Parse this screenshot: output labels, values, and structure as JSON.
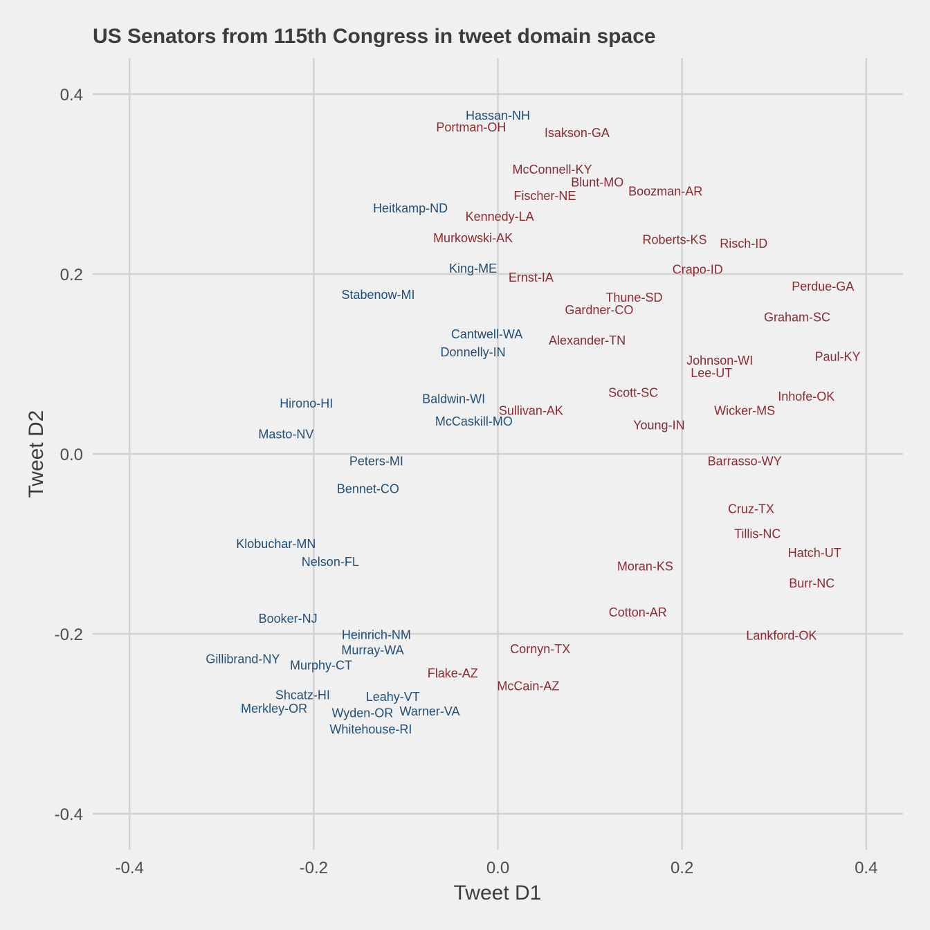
{
  "chart_data": {
    "type": "scatter",
    "title": "US Senators from 115th Congress in tweet domain space",
    "xlabel": "Tweet D1",
    "ylabel": "Tweet D2",
    "xlim": [
      -0.44,
      0.44
    ],
    "ylim": [
      -0.44,
      0.44
    ],
    "xticks": [
      -0.4,
      -0.2,
      0.0,
      0.2,
      0.4
    ],
    "yticks": [
      -0.4,
      -0.2,
      0.0,
      0.2,
      0.4
    ],
    "xtick_labels": [
      "-0.4",
      "-0.2",
      "0.0",
      "0.2",
      "0.4"
    ],
    "ytick_labels": [
      "-0.4",
      "-0.2",
      "0.0",
      "0.2",
      "0.4"
    ],
    "grid": true,
    "colors": {
      "democrat": "#1f4e79",
      "republican": "#8b2a2f"
    },
    "points": [
      {
        "label": "Hassan-NH",
        "x": 0.0,
        "y": 0.376,
        "group": "democrat"
      },
      {
        "label": "Portman-OH",
        "x": -0.029,
        "y": 0.363,
        "group": "republican"
      },
      {
        "label": "Isakson-GA",
        "x": 0.086,
        "y": 0.357,
        "group": "republican"
      },
      {
        "label": "McConnell-KY",
        "x": 0.059,
        "y": 0.316,
        "group": "republican"
      },
      {
        "label": "Blunt-MO",
        "x": 0.108,
        "y": 0.302,
        "group": "republican"
      },
      {
        "label": "Boozman-AR",
        "x": 0.182,
        "y": 0.292,
        "group": "republican"
      },
      {
        "label": "Fischer-NE",
        "x": 0.051,
        "y": 0.287,
        "group": "republican"
      },
      {
        "label": "Heitkamp-ND",
        "x": -0.095,
        "y": 0.273,
        "group": "democrat"
      },
      {
        "label": "Kennedy-LA",
        "x": 0.002,
        "y": 0.264,
        "group": "republican"
      },
      {
        "label": "Murkowski-AK",
        "x": -0.027,
        "y": 0.24,
        "group": "republican"
      },
      {
        "label": "Roberts-KS",
        "x": 0.192,
        "y": 0.238,
        "group": "republican"
      },
      {
        "label": "Risch-ID",
        "x": 0.267,
        "y": 0.234,
        "group": "republican"
      },
      {
        "label": "King-ME",
        "x": -0.027,
        "y": 0.206,
        "group": "democrat"
      },
      {
        "label": "Crapo-ID",
        "x": 0.217,
        "y": 0.205,
        "group": "republican"
      },
      {
        "label": "Ernst-IA",
        "x": 0.036,
        "y": 0.196,
        "group": "republican"
      },
      {
        "label": "Perdue-GA",
        "x": 0.353,
        "y": 0.186,
        "group": "republican"
      },
      {
        "label": "Stabenow-MI",
        "x": -0.13,
        "y": 0.177,
        "group": "democrat"
      },
      {
        "label": "Thune-SD",
        "x": 0.148,
        "y": 0.174,
        "group": "republican"
      },
      {
        "label": "Gardner-CO",
        "x": 0.11,
        "y": 0.16,
        "group": "republican"
      },
      {
        "label": "Graham-SC",
        "x": 0.325,
        "y": 0.152,
        "group": "republican"
      },
      {
        "label": "Cantwell-WA",
        "x": -0.012,
        "y": 0.133,
        "group": "democrat"
      },
      {
        "label": "Alexander-TN",
        "x": 0.097,
        "y": 0.126,
        "group": "republican"
      },
      {
        "label": "Donnelly-IN",
        "x": -0.027,
        "y": 0.113,
        "group": "democrat"
      },
      {
        "label": "Johnson-WI",
        "x": 0.241,
        "y": 0.104,
        "group": "republican"
      },
      {
        "label": "Paul-KY",
        "x": 0.369,
        "y": 0.108,
        "group": "republican"
      },
      {
        "label": "Lee-UT",
        "x": 0.232,
        "y": 0.09,
        "group": "republican"
      },
      {
        "label": "Scott-SC",
        "x": 0.147,
        "y": 0.068,
        "group": "republican"
      },
      {
        "label": "Inhofe-OK",
        "x": 0.335,
        "y": 0.064,
        "group": "republican"
      },
      {
        "label": "Baldwin-WI",
        "x": -0.048,
        "y": 0.061,
        "group": "democrat"
      },
      {
        "label": "Hirono-HI",
        "x": -0.208,
        "y": 0.056,
        "group": "democrat"
      },
      {
        "label": "Sullivan-AK",
        "x": 0.036,
        "y": 0.048,
        "group": "republican"
      },
      {
        "label": "Wicker-MS",
        "x": 0.268,
        "y": 0.048,
        "group": "republican"
      },
      {
        "label": "McCaskill-MO",
        "x": -0.026,
        "y": 0.036,
        "group": "democrat"
      },
      {
        "label": "Young-IN",
        "x": 0.175,
        "y": 0.032,
        "group": "republican"
      },
      {
        "label": "Masto-NV",
        "x": -0.23,
        "y": 0.022,
        "group": "democrat"
      },
      {
        "label": "Peters-MI",
        "x": -0.132,
        "y": -0.008,
        "group": "democrat"
      },
      {
        "label": "Barrasso-WY",
        "x": 0.268,
        "y": -0.008,
        "group": "republican"
      },
      {
        "label": "Bennet-CO",
        "x": -0.141,
        "y": -0.039,
        "group": "democrat"
      },
      {
        "label": "Cruz-TX",
        "x": 0.275,
        "y": -0.061,
        "group": "republican"
      },
      {
        "label": "Tillis-NC",
        "x": 0.282,
        "y": -0.089,
        "group": "republican"
      },
      {
        "label": "Klobuchar-MN",
        "x": -0.241,
        "y": -0.1,
        "group": "democrat"
      },
      {
        "label": "Hatch-UT",
        "x": 0.344,
        "y": -0.11,
        "group": "republican"
      },
      {
        "label": "Nelson-FL",
        "x": -0.182,
        "y": -0.12,
        "group": "democrat"
      },
      {
        "label": "Moran-KS",
        "x": 0.16,
        "y": -0.125,
        "group": "republican"
      },
      {
        "label": "Burr-NC",
        "x": 0.341,
        "y": -0.144,
        "group": "republican"
      },
      {
        "label": "Cotton-AR",
        "x": 0.152,
        "y": -0.176,
        "group": "republican"
      },
      {
        "label": "Booker-NJ",
        "x": -0.228,
        "y": -0.183,
        "group": "democrat"
      },
      {
        "label": "Heinrich-NM",
        "x": -0.132,
        "y": -0.201,
        "group": "democrat"
      },
      {
        "label": "Lankford-OK",
        "x": 0.308,
        "y": -0.202,
        "group": "republican"
      },
      {
        "label": "Cornyn-TX",
        "x": 0.046,
        "y": -0.217,
        "group": "republican"
      },
      {
        "label": "Murray-WA",
        "x": -0.136,
        "y": -0.218,
        "group": "democrat"
      },
      {
        "label": "Gillibrand-NY",
        "x": -0.277,
        "y": -0.228,
        "group": "democrat"
      },
      {
        "label": "Murphy-CT",
        "x": -0.192,
        "y": -0.235,
        "group": "democrat"
      },
      {
        "label": "Flake-AZ",
        "x": -0.049,
        "y": -0.244,
        "group": "republican"
      },
      {
        "label": "McCain-AZ",
        "x": 0.033,
        "y": -0.258,
        "group": "republican"
      },
      {
        "label": "Shcatz-HI",
        "x": -0.212,
        "y": -0.268,
        "group": "democrat"
      },
      {
        "label": "Leahy-VT",
        "x": -0.114,
        "y": -0.27,
        "group": "democrat"
      },
      {
        "label": "Merkley-OR",
        "x": -0.243,
        "y": -0.283,
        "group": "democrat"
      },
      {
        "label": "Wyden-OR",
        "x": -0.147,
        "y": -0.288,
        "group": "democrat"
      },
      {
        "label": "Warner-VA",
        "x": -0.074,
        "y": -0.286,
        "group": "democrat"
      },
      {
        "label": "Whitehouse-RI",
        "x": -0.138,
        "y": -0.306,
        "group": "democrat"
      }
    ]
  }
}
